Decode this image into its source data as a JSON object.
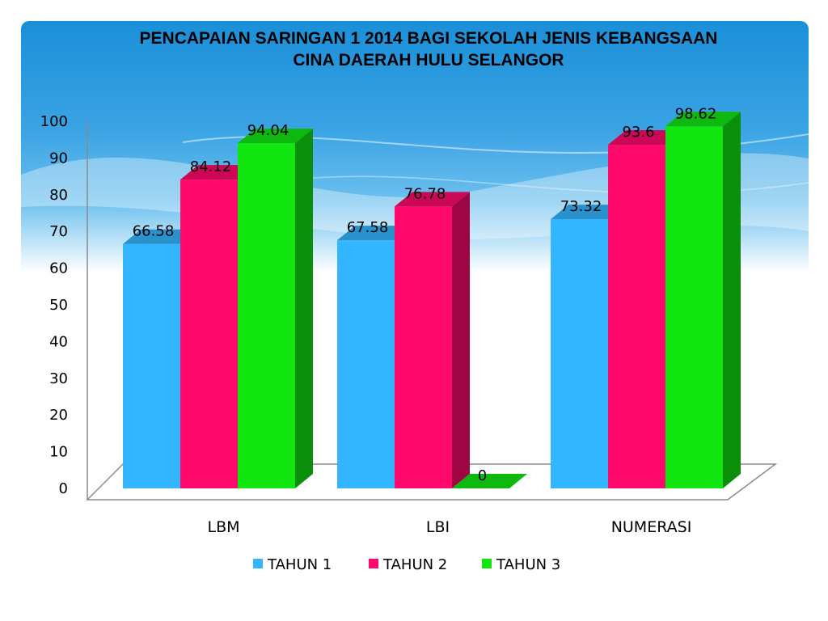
{
  "chart_data": {
    "type": "bar",
    "title": "PENCAPAIAN SARINGAN  1 2014 BAGI SEKOLAH JENIS KEBANGSAAN\nCINA DAERAH HULU SELANGOR",
    "categories": [
      "LBM",
      "LBI",
      "NUMERASI"
    ],
    "series": [
      {
        "name": "TAHUN 1",
        "values": [
          66.58,
          67.58,
          73.32
        ],
        "labels": [
          "66.58",
          "67.58",
          "73.32"
        ],
        "color": "#33b5ff"
      },
      {
        "name": "TAHUN 2",
        "values": [
          84.12,
          76.78,
          93.6
        ],
        "labels": [
          "84.12",
          "76.78",
          "93.6"
        ],
        "color": "#ff0a6c"
      },
      {
        "name": "TAHUN 3",
        "values": [
          94.04,
          0,
          98.62
        ],
        "labels": [
          "94.04",
          "0",
          "98.62"
        ],
        "color": "#11e611"
      }
    ],
    "yticks": [
      "0",
      "10",
      "20",
      "30",
      "40",
      "50",
      "60",
      "70",
      "80",
      "90",
      "100"
    ],
    "ylim": [
      0,
      100
    ],
    "xlabel": "",
    "ylabel": "",
    "legend_position": "bottom",
    "grid": false
  }
}
